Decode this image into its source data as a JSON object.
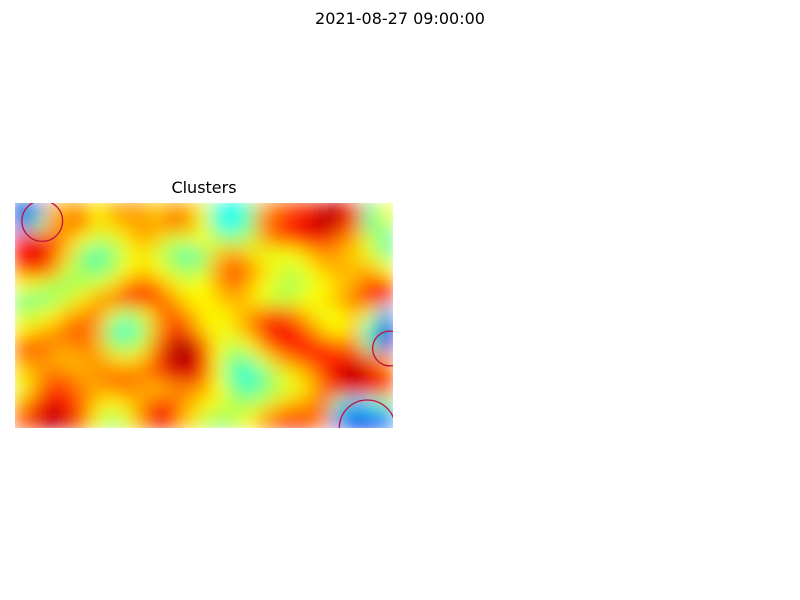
{
  "figure": {
    "title": "2021-08-27 09:00:00"
  },
  "chart_data": {
    "type": "heatmap",
    "title": "Clusters",
    "colormap": "jet",
    "axes_visible": false,
    "background": "#ffffff",
    "cluster_circle_color": "#c0103a",
    "colormap_stops": [
      {
        "value": 0.0,
        "color": "#00008f"
      },
      {
        "value": 0.12,
        "color": "#0000ff"
      },
      {
        "value": 0.36,
        "color": "#00ffff"
      },
      {
        "value": 0.5,
        "color": "#7fff7f"
      },
      {
        "value": 0.62,
        "color": "#ffff00"
      },
      {
        "value": 0.86,
        "color": "#ff0000"
      },
      {
        "value": 1.0,
        "color": "#800000"
      }
    ],
    "grid": {
      "rows": 15,
      "cols": 25,
      "values": [
        [
          0.05,
          0.25,
          0.68,
          0.7,
          0.72,
          0.62,
          0.7,
          0.72,
          0.7,
          0.66,
          0.72,
          0.7,
          0.6,
          0.4,
          0.38,
          0.45,
          0.7,
          0.76,
          0.8,
          0.82,
          0.92,
          0.92,
          0.84,
          0.44,
          0.62
        ],
        [
          0.22,
          0.45,
          0.7,
          0.74,
          0.76,
          0.64,
          0.66,
          0.7,
          0.72,
          0.7,
          0.76,
          0.72,
          0.6,
          0.4,
          0.36,
          0.48,
          0.74,
          0.8,
          0.86,
          0.9,
          0.94,
          0.9,
          0.76,
          0.46,
          0.55
        ],
        [
          0.82,
          0.86,
          0.78,
          0.7,
          0.62,
          0.56,
          0.58,
          0.64,
          0.7,
          0.66,
          0.58,
          0.58,
          0.62,
          0.55,
          0.52,
          0.56,
          0.7,
          0.76,
          0.8,
          0.86,
          0.84,
          0.76,
          0.7,
          0.58,
          0.46
        ],
        [
          0.86,
          0.9,
          0.8,
          0.66,
          0.5,
          0.44,
          0.5,
          0.6,
          0.64,
          0.58,
          0.5,
          0.44,
          0.5,
          0.66,
          0.72,
          0.66,
          0.6,
          0.6,
          0.62,
          0.68,
          0.72,
          0.7,
          0.66,
          0.6,
          0.5
        ],
        [
          0.8,
          0.84,
          0.74,
          0.58,
          0.52,
          0.48,
          0.54,
          0.62,
          0.66,
          0.62,
          0.56,
          0.52,
          0.56,
          0.72,
          0.8,
          0.74,
          0.66,
          0.6,
          0.56,
          0.62,
          0.68,
          0.7,
          0.68,
          0.7,
          0.62
        ],
        [
          0.62,
          0.6,
          0.56,
          0.52,
          0.56,
          0.58,
          0.64,
          0.72,
          0.78,
          0.72,
          0.64,
          0.6,
          0.62,
          0.7,
          0.76,
          0.7,
          0.62,
          0.56,
          0.54,
          0.58,
          0.62,
          0.66,
          0.7,
          0.8,
          0.86
        ],
        [
          0.5,
          0.48,
          0.52,
          0.58,
          0.64,
          0.7,
          0.76,
          0.82,
          0.86,
          0.8,
          0.72,
          0.64,
          0.62,
          0.66,
          0.7,
          0.66,
          0.6,
          0.56,
          0.58,
          0.62,
          0.64,
          0.7,
          0.76,
          0.82,
          0.78
        ],
        [
          0.56,
          0.58,
          0.62,
          0.68,
          0.72,
          0.74,
          0.6,
          0.52,
          0.6,
          0.72,
          0.78,
          0.72,
          0.64,
          0.62,
          0.66,
          0.7,
          0.76,
          0.8,
          0.74,
          0.66,
          0.6,
          0.62,
          0.68,
          0.6,
          0.3
        ],
        [
          0.62,
          0.66,
          0.7,
          0.76,
          0.8,
          0.7,
          0.46,
          0.4,
          0.52,
          0.7,
          0.82,
          0.78,
          0.66,
          0.6,
          0.64,
          0.72,
          0.82,
          0.88,
          0.84,
          0.76,
          0.66,
          0.62,
          0.66,
          0.4,
          0.05
        ],
        [
          0.76,
          0.78,
          0.74,
          0.72,
          0.76,
          0.7,
          0.54,
          0.5,
          0.58,
          0.76,
          0.92,
          0.94,
          0.8,
          0.62,
          0.56,
          0.62,
          0.74,
          0.84,
          0.86,
          0.84,
          0.8,
          0.76,
          0.74,
          0.46,
          0.1
        ],
        [
          0.72,
          0.74,
          0.7,
          0.68,
          0.7,
          0.72,
          0.66,
          0.64,
          0.68,
          0.8,
          0.94,
          0.96,
          0.84,
          0.6,
          0.48,
          0.5,
          0.6,
          0.7,
          0.76,
          0.8,
          0.84,
          0.86,
          0.88,
          0.78,
          0.7
        ],
        [
          0.64,
          0.7,
          0.76,
          0.74,
          0.7,
          0.72,
          0.76,
          0.76,
          0.74,
          0.78,
          0.88,
          0.9,
          0.8,
          0.6,
          0.44,
          0.4,
          0.48,
          0.58,
          0.64,
          0.7,
          0.8,
          0.9,
          0.96,
          0.9,
          0.8
        ],
        [
          0.6,
          0.72,
          0.82,
          0.8,
          0.74,
          0.7,
          0.72,
          0.74,
          0.7,
          0.68,
          0.72,
          0.74,
          0.7,
          0.62,
          0.5,
          0.44,
          0.5,
          0.56,
          0.6,
          0.66,
          0.76,
          0.84,
          0.88,
          0.86,
          0.78
        ],
        [
          0.7,
          0.82,
          0.9,
          0.86,
          0.76,
          0.66,
          0.62,
          0.66,
          0.72,
          0.84,
          0.78,
          0.7,
          0.64,
          0.6,
          0.56,
          0.54,
          0.58,
          0.66,
          0.7,
          0.72,
          0.76,
          0.44,
          0.3,
          0.36,
          0.48
        ],
        [
          0.78,
          0.88,
          0.94,
          0.9,
          0.78,
          0.6,
          0.52,
          0.6,
          0.74,
          0.88,
          0.8,
          0.66,
          0.58,
          0.52,
          0.54,
          0.62,
          0.72,
          0.8,
          0.84,
          0.8,
          0.72,
          0.26,
          0.08,
          0.1,
          0.22
        ]
      ]
    },
    "clusters": [
      {
        "col": 1.3,
        "row": 0.7,
        "radius": 1.35
      },
      {
        "col": 24.3,
        "row": 9.2,
        "radius": 1.15
      },
      {
        "col": 22.8,
        "row": 14.5,
        "radius": 1.85
      }
    ]
  }
}
